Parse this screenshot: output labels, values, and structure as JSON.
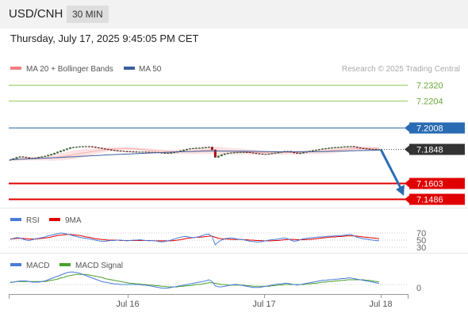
{
  "header": {
    "pair": "USD/CNH",
    "interval": "30 MIN"
  },
  "datetime": "Thursday, July 17, 2025 9:45:05 PM CET",
  "legend": {
    "bollinger": "MA 20 + Bollinger Bands",
    "ma50": "MA 50",
    "credit": "Research © 2025 Trading Central"
  },
  "colors": {
    "resistance": "#8fcc5a",
    "pivot": "#2a6cb3",
    "support": "#e00000",
    "current": "#333333",
    "bollinger": "#f08080",
    "ma50": "#3a5f9e",
    "rsi": "#4a7bd8",
    "rsi_ma": "#e00000",
    "macd": "#4a7bd8",
    "macd_signal": "#4aa02c"
  },
  "levels": [
    {
      "label": "7.2320",
      "value": 7.232,
      "kind": "resistance"
    },
    {
      "label": "7.2204",
      "value": 7.2204,
      "kind": "resistance"
    },
    {
      "label": "7.2008",
      "value": 7.2008,
      "kind": "pivot"
    },
    {
      "label": "7.1848",
      "value": 7.1848,
      "kind": "current"
    },
    {
      "label": "7.1603",
      "value": 7.1603,
      "kind": "support"
    },
    {
      "label": "7.1486",
      "value": 7.1486,
      "kind": "support"
    }
  ],
  "rsi_panel": {
    "legend_rsi": "RSI",
    "legend_ma": "9MA",
    "ticks": [
      "70",
      "50",
      "30"
    ]
  },
  "macd_panel": {
    "legend_macd": "MACD",
    "legend_signal": "MACD Signal",
    "ticks": [
      "0"
    ]
  },
  "x_axis": {
    "ticks": [
      "Jul 16",
      "Jul 17",
      "Jul 18"
    ]
  },
  "chart_data": {
    "type": "candlestick",
    "x_ticks": [
      "Jul 16",
      "Jul 17",
      "Jul 18"
    ],
    "price": {
      "close": [
        7.1772,
        7.1781,
        7.179,
        7.1795,
        7.1792,
        7.1788,
        7.1784,
        7.178,
        7.1786,
        7.1791,
        7.1795,
        7.1799,
        7.1806,
        7.1813,
        7.1821,
        7.1829,
        7.1837,
        7.1845,
        7.1853,
        7.1861,
        7.1864,
        7.1866,
        7.1868,
        7.1869,
        7.187,
        7.1869,
        7.1866,
        7.1862,
        7.1858,
        7.1854,
        7.185,
        7.1846,
        7.1843,
        7.184,
        7.1838,
        7.1836,
        7.1834,
        7.1833,
        7.1832,
        7.1831,
        7.183,
        7.183,
        7.183,
        7.1829,
        7.1828,
        7.1828,
        7.1827,
        7.1824,
        7.1822,
        7.182,
        7.1821,
        7.1823,
        7.1827,
        7.1832,
        7.1838,
        7.1844,
        7.185,
        7.1854,
        7.1856,
        7.1858,
        7.1859,
        7.1861,
        7.1863,
        7.1865,
        7.1845,
        7.179,
        7.18,
        7.1809,
        7.1816,
        7.1821,
        7.1824,
        7.1826,
        7.1827,
        7.1828,
        7.1828,
        7.1827,
        7.1824,
        7.1821,
        7.1818,
        7.1815,
        7.1813,
        7.1813,
        7.1815,
        7.1819,
        7.1822,
        7.1826,
        7.183,
        7.1834,
        7.1834,
        7.1828,
        7.1822,
        7.1818,
        7.1821,
        7.1826,
        7.1831,
        7.1835,
        7.184,
        7.1844,
        7.1848,
        7.1852,
        7.1855,
        7.1858,
        7.1861,
        7.1863,
        7.1864,
        7.1866,
        7.1868,
        7.1869,
        7.187,
        7.1866,
        7.1861,
        7.1857,
        7.1854,
        7.1852,
        7.185,
        7.1849,
        7.1848,
        7.1848
      ],
      "ma20_bollinger": {
        "middle": [
          7.1775,
          7.1775,
          7.1776,
          7.1777,
          7.1778,
          7.1778,
          7.1779,
          7.178,
          7.1781,
          7.1781,
          7.1782,
          7.1783,
          7.1784,
          7.1786,
          7.1788,
          7.1791,
          7.1794,
          7.1797,
          7.1801,
          7.1805,
          7.1809,
          7.1813,
          7.1817,
          7.1821,
          7.1825,
          7.1829,
          7.1832,
          7.1836,
          7.1839,
          7.1842,
          7.1845,
          7.1848,
          7.185,
          7.1852,
          7.1853,
          7.1854,
          7.1854,
          7.1854,
          7.1853,
          7.1852,
          7.1851,
          7.1849,
          7.1847,
          7.1845,
          7.1843,
          7.1841,
          7.1839,
          7.1837,
          7.1835,
          7.1833,
          7.1832,
          7.1831,
          7.1831,
          7.1831,
          7.1831,
          7.1832,
          7.1833,
          7.1834,
          7.1835,
          7.1837,
          7.1838,
          7.184,
          7.1841,
          7.1842,
          7.1842,
          7.184,
          7.1838,
          7.1837,
          7.1836,
          7.1835,
          7.1834,
          7.1833,
          7.1832,
          7.1832,
          7.1831,
          7.183,
          7.1829,
          7.1828,
          7.1827,
          7.1826,
          7.1825,
          7.1824,
          7.1823,
          7.1823,
          7.1823,
          7.1823,
          7.1823,
          7.1824,
          7.1825,
          7.1825,
          7.1825,
          7.1825,
          7.1826,
          7.1827,
          7.1828,
          7.1829,
          7.183,
          7.1831,
          7.1832,
          7.1834,
          7.1836,
          7.1838,
          7.184,
          7.1842,
          7.1844,
          7.1846,
          7.1848,
          7.185,
          7.1852,
          7.1853,
          7.1854,
          7.1855,
          7.1856,
          7.1857,
          7.1857,
          7.1857,
          7.1857,
          7.1856
        ],
        "band_halfwidth": [
          0.001,
          0.001,
          0.0011,
          0.0011,
          0.0012,
          0.0012,
          0.0012,
          0.0013,
          0.0013,
          0.0014,
          0.0015,
          0.0016,
          0.0018,
          0.002,
          0.0022,
          0.0024,
          0.0026,
          0.0028,
          0.003,
          0.0031,
          0.0032,
          0.0032,
          0.0031,
          0.003,
          0.0029,
          0.0027,
          0.0025,
          0.0023,
          0.0021,
          0.0019,
          0.0017,
          0.0016,
          0.0015,
          0.0014,
          0.0013,
          0.0012,
          0.0012,
          0.0012,
          0.0012,
          0.0012,
          0.0012,
          0.0012,
          0.0012,
          0.0012,
          0.0012,
          0.0012,
          0.0012,
          0.0012,
          0.0013,
          0.0013,
          0.0014,
          0.0015,
          0.0016,
          0.0017,
          0.0018,
          0.0019,
          0.002,
          0.0021,
          0.0022,
          0.0023,
          0.0024,
          0.0025,
          0.0026,
          0.0027,
          0.0028,
          0.0029,
          0.0029,
          0.0028,
          0.0027,
          0.0026,
          0.0025,
          0.0024,
          0.0023,
          0.0022,
          0.0021,
          0.002,
          0.0019,
          0.0018,
          0.0017,
          0.0016,
          0.0015,
          0.0014,
          0.0014,
          0.0014,
          0.0014,
          0.0014,
          0.0014,
          0.0015,
          0.0015,
          0.0015,
          0.0016,
          0.0016,
          0.0016,
          0.0016,
          0.0016,
          0.0016,
          0.0017,
          0.0017,
          0.0018,
          0.0018,
          0.0019,
          0.0019,
          0.002,
          0.002,
          0.002,
          0.002,
          0.002,
          0.0019,
          0.0018,
          0.0017,
          0.0016,
          0.0015,
          0.0014,
          0.0013,
          0.0012,
          0.0011,
          0.001,
          0.001
        ]
      },
      "ma50": [
        7.1773,
        7.1774,
        7.1775,
        7.1776,
        7.1777,
        7.1778,
        7.1779,
        7.178,
        7.1781,
        7.1782,
        7.1783,
        7.1784,
        7.1785,
        7.1786,
        7.1787,
        7.1788,
        7.1789,
        7.179,
        7.1792,
        7.1793,
        7.1794,
        7.1795,
        7.1797,
        7.1798,
        7.1799,
        7.18,
        7.1802,
        7.1803,
        7.1804,
        7.1805,
        7.1807,
        7.1808,
        7.1809,
        7.181,
        7.1811,
        7.1812,
        7.1813,
        7.1814,
        7.1815,
        7.1816,
        7.1817,
        7.1818,
        7.1819,
        7.182,
        7.1821,
        7.1822,
        7.1823,
        7.1824,
        7.1825,
        7.1826,
        7.1827,
        7.1828,
        7.1829,
        7.183,
        7.1831,
        7.1831,
        7.1832,
        7.1833,
        7.1833,
        7.1834,
        7.1834,
        7.1835,
        7.1835,
        7.1836,
        7.1836,
        7.1836,
        7.1836,
        7.1836,
        7.1836,
        7.1836,
        7.1836,
        7.1835,
        7.1835,
        7.1835,
        7.1835,
        7.1834,
        7.1834,
        7.1834,
        7.1833,
        7.1833,
        7.1832,
        7.1832,
        7.1831,
        7.1831,
        7.1831,
        7.183,
        7.183,
        7.183,
        7.183,
        7.183,
        7.183,
        7.183,
        7.183,
        7.183,
        7.183,
        7.1831,
        7.1831,
        7.1831,
        7.1832,
        7.1832,
        7.1833,
        7.1833,
        7.1834,
        7.1834,
        7.1835,
        7.1836,
        7.1836,
        7.1837,
        7.1838,
        7.1838,
        7.1839,
        7.1839,
        7.184,
        7.184,
        7.1841,
        7.1841,
        7.1842,
        7.1842
      ],
      "forecast": [
        7.1848,
        7.1486
      ]
    },
    "rsi": {
      "value": [
        52,
        55,
        57,
        56,
        53,
        50,
        49,
        51,
        54,
        55,
        57,
        59,
        62,
        64,
        66,
        68,
        70,
        69,
        67,
        65,
        62,
        60,
        58,
        56,
        55,
        54,
        52,
        50,
        48,
        47,
        47,
        48,
        49,
        49,
        50,
        50,
        49,
        48,
        49,
        50,
        50,
        51,
        50,
        49,
        48,
        49,
        48,
        46,
        45,
        46,
        48,
        50,
        53,
        56,
        58,
        60,
        60,
        58,
        57,
        58,
        60,
        63,
        66,
        67,
        60,
        37,
        45,
        50,
        54,
        55,
        56,
        55,
        53,
        52,
        51,
        49,
        47,
        46,
        45,
        45,
        46,
        48,
        50,
        51,
        52,
        53,
        55,
        56,
        54,
        50,
        47,
        48,
        51,
        54,
        55,
        56,
        57,
        58,
        59,
        59,
        60,
        61,
        61,
        62,
        62,
        63,
        64,
        65,
        66,
        62,
        58,
        56,
        54,
        53,
        51,
        50,
        49,
        48
      ],
      "ma9": [
        53,
        54,
        55,
        55,
        55,
        54,
        53,
        53,
        53,
        54,
        55,
        56,
        57,
        59,
        61,
        63,
        64,
        65,
        66,
        66,
        65,
        64,
        63,
        61,
        59,
        58,
        56,
        54,
        53,
        52,
        51,
        50,
        50,
        50,
        50,
        49,
        49,
        49,
        49,
        49,
        49,
        49,
        49,
        49,
        49,
        49,
        48,
        48,
        48,
        48,
        48,
        48,
        49,
        50,
        51,
        53,
        55,
        56,
        57,
        58,
        58,
        59,
        60,
        61,
        61,
        58,
        55,
        54,
        53,
        53,
        52,
        52,
        52,
        52,
        51,
        51,
        50,
        50,
        49,
        49,
        48,
        48,
        48,
        48,
        49,
        49,
        50,
        51,
        52,
        52,
        52,
        51,
        51,
        51,
        52,
        52,
        53,
        54,
        55,
        56,
        57,
        58,
        59,
        59,
        60,
        60,
        61,
        62,
        62,
        62,
        61,
        60,
        59,
        58,
        57,
        56,
        55,
        54
      ],
      "ticks": [
        70,
        50,
        30
      ]
    },
    "macd": {
      "macd": [
        0.0003,
        0.0004,
        0.0005,
        0.0006,
        0.0006,
        0.0006,
        0.0005,
        0.0004,
        0.0004,
        0.0004,
        0.0005,
        0.0006,
        0.0008,
        0.001,
        0.0012,
        0.0014,
        0.0016,
        0.0018,
        0.002,
        0.0021,
        0.0021,
        0.002,
        0.0019,
        0.0017,
        0.0015,
        0.0013,
        0.0011,
        0.0009,
        0.0007,
        0.0005,
        0.0004,
        0.0003,
        0.0002,
        0.0001,
        0.0001,
        0.0,
        0.0,
        0.0,
        0.0,
        0.0,
        0.0,
        0.0,
        -0.0001,
        -0.0001,
        -0.0002,
        -0.0003,
        -0.0004,
        -0.0005,
        -0.0006,
        -0.0006,
        -0.0006,
        -0.0005,
        -0.0004,
        -0.0003,
        -0.0002,
        -0.0001,
        0.0,
        0.0001,
        0.0002,
        0.0003,
        0.0004,
        0.0005,
        0.0006,
        0.0008,
        0.0005,
        -0.0002,
        -0.0004,
        -0.0004,
        -0.0003,
        -0.0002,
        -0.0001,
        0.0,
        0.0,
        -0.0001,
        -0.0002,
        -0.0003,
        -0.0004,
        -0.0005,
        -0.0005,
        -0.0005,
        -0.0004,
        -0.0003,
        -0.0002,
        -0.0001,
        0.0,
        0.0001,
        0.0001,
        0.0002,
        0.0002,
        0.0001,
        0.0,
        -0.0001,
        0.0,
        0.0001,
        0.0002,
        0.0003,
        0.0004,
        0.0005,
        0.0006,
        0.0007,
        0.0007,
        0.0008,
        0.0008,
        0.0009,
        0.0009,
        0.001,
        0.001,
        0.0011,
        0.0011,
        0.001,
        0.0009,
        0.0008,
        0.0007,
        0.0006,
        0.0005,
        0.0004,
        0.0003,
        0.0002
      ],
      "signal": [
        0.0004,
        0.0004,
        0.0005,
        0.0005,
        0.0005,
        0.0005,
        0.0005,
        0.0005,
        0.0005,
        0.0005,
        0.0005,
        0.0005,
        0.0006,
        0.0007,
        0.0008,
        0.0009,
        0.0011,
        0.0012,
        0.0014,
        0.0015,
        0.0016,
        0.0017,
        0.0017,
        0.0017,
        0.0017,
        0.0016,
        0.0015,
        0.0014,
        0.0013,
        0.0012,
        0.001,
        0.0009,
        0.0008,
        0.0007,
        0.0006,
        0.0005,
        0.0004,
        0.0003,
        0.0002,
        0.0002,
        0.0001,
        0.0001,
        0.0,
        0.0,
        -0.0001,
        -0.0001,
        -0.0002,
        -0.0002,
        -0.0003,
        -0.0003,
        -0.0004,
        -0.0004,
        -0.0004,
        -0.0004,
        -0.0003,
        -0.0003,
        -0.0002,
        -0.0002,
        -0.0001,
        0.0,
        0.0,
        0.0001,
        0.0002,
        0.0003,
        0.0003,
        0.0002,
        0.0001,
        0.0,
        0.0,
        -0.0001,
        -0.0001,
        -0.0001,
        -0.0001,
        -0.0001,
        -0.0001,
        -0.0002,
        -0.0002,
        -0.0003,
        -0.0003,
        -0.0003,
        -0.0003,
        -0.0003,
        -0.0003,
        -0.0002,
        -0.0002,
        -0.0001,
        -0.0001,
        0.0,
        0.0,
        0.0,
        0.0,
        0.0,
        0.0,
        0.0,
        0.0001,
        0.0001,
        0.0002,
        0.0002,
        0.0003,
        0.0004,
        0.0004,
        0.0005,
        0.0005,
        0.0006,
        0.0006,
        0.0007,
        0.0007,
        0.0008,
        0.0008,
        0.0008,
        0.0008,
        0.0008,
        0.0008,
        0.0007,
        0.0007,
        0.0006,
        0.0005,
        0.0005
      ],
      "zero": 0
    }
  }
}
